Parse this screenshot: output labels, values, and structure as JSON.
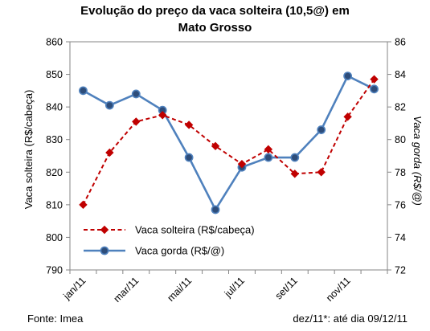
{
  "chart_data": {
    "type": "line",
    "title_lines": [
      "Evolução do preço da vaca solteira (10,5@) em",
      "Mato Grosso"
    ],
    "x_tick_labels": [
      "jan/11",
      "mar/11",
      "mai/11",
      "jul/11",
      "set/11",
      "nov/11"
    ],
    "x": [
      "jan/11",
      "fev/11",
      "mar/11",
      "abr/11",
      "mai/11",
      "jun/11",
      "jul/11",
      "ago/11",
      "set/11",
      "out/11",
      "nov/11",
      "dez/11"
    ],
    "ylabel_left": "Vaca  solteira (R$/cabeça)",
    "ylabel_right": "Vaca gorda (R$/@)",
    "ylim_left": [
      790,
      860
    ],
    "ylim_right": [
      72,
      86
    ],
    "yticks_left": [
      "790",
      "800",
      "810",
      "820",
      "830",
      "840",
      "850",
      "860"
    ],
    "yticks_right": [
      "72",
      "74",
      "76",
      "78",
      "80",
      "82",
      "84",
      "86"
    ],
    "grid": false,
    "legend_position": "bottom-left",
    "series": [
      {
        "name": "Vaca solteira (R$/cabeça)",
        "axis": "left",
        "color": "#c00000",
        "style": "dashed",
        "marker": "diamond",
        "values": [
          810,
          826,
          835.5,
          837.5,
          834.5,
          828,
          822.5,
          827,
          819.5,
          820,
          837,
          848.5
        ]
      },
      {
        "name": "Vaca gorda (R$/@)",
        "axis": "right",
        "color": "#4f81bd",
        "style": "solid",
        "marker": "circle",
        "values": [
          83,
          82.1,
          82.8,
          81.8,
          78.9,
          75.7,
          78.3,
          78.9,
          78.9,
          80.6,
          83.9,
          83.1
        ]
      }
    ]
  },
  "footer": {
    "source": "Fonte: Imea",
    "note": "dez/11*: até dia 09/12/11"
  }
}
